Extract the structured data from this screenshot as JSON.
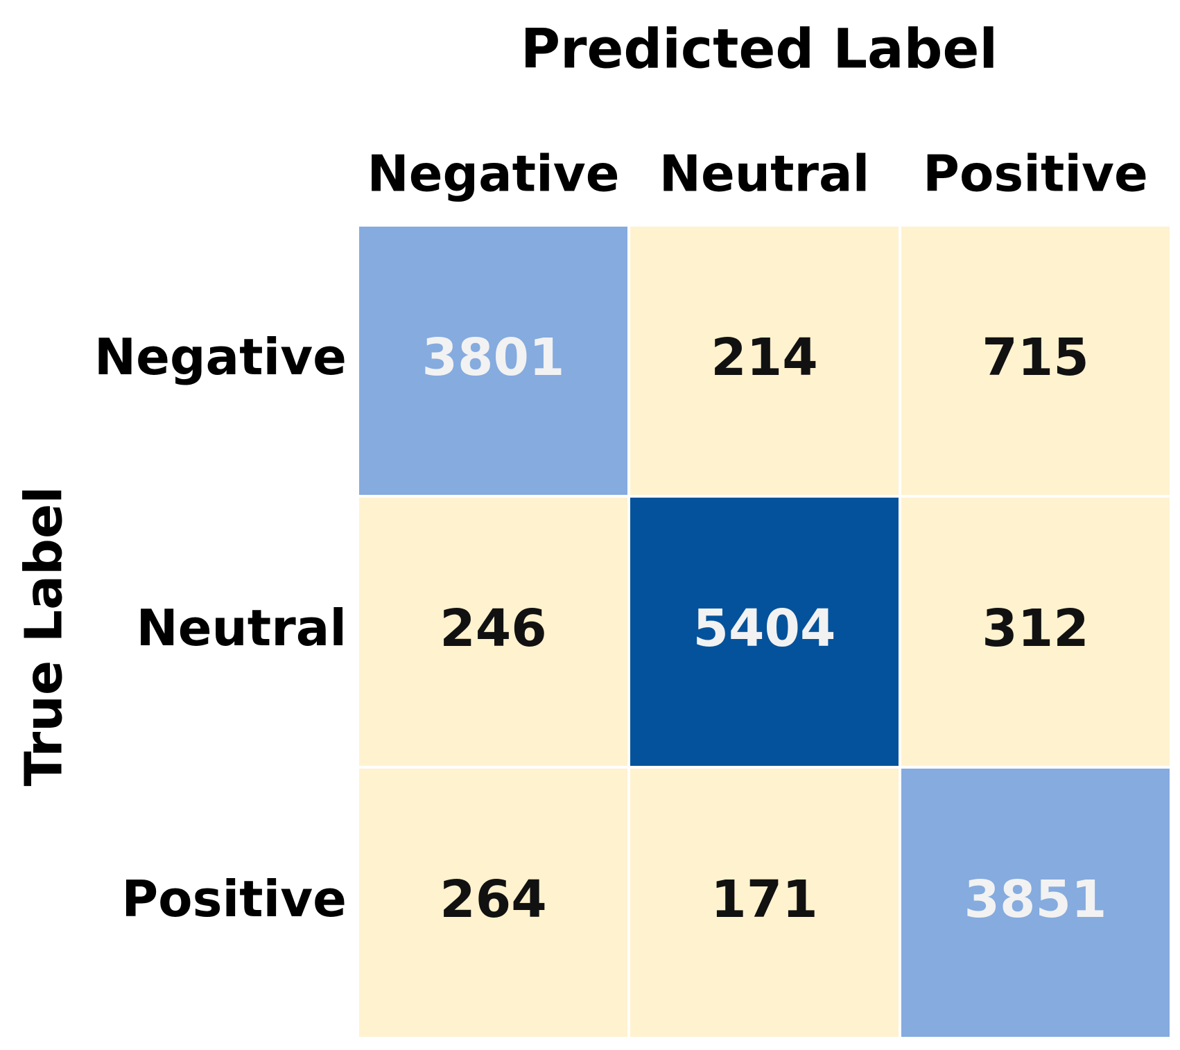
{
  "chart_data": {
    "type": "heatmap",
    "x_label": "Predicted Label",
    "y_label": "True Label",
    "x_categories": [
      "Negative",
      "Neutral",
      "Positive"
    ],
    "y_categories": [
      "Negative",
      "Neutral",
      "Positive"
    ],
    "values": [
      [
        3801,
        214,
        715
      ],
      [
        246,
        5404,
        312
      ],
      [
        264,
        171,
        3851
      ]
    ],
    "colors": [
      [
        "#85abdf",
        "#fff2cf",
        "#fff2cf"
      ],
      [
        "#fff2cf",
        "#04529b",
        "#fff2cf"
      ],
      [
        "#fff2cf",
        "#fff2cf",
        "#85abdf"
      ]
    ]
  }
}
